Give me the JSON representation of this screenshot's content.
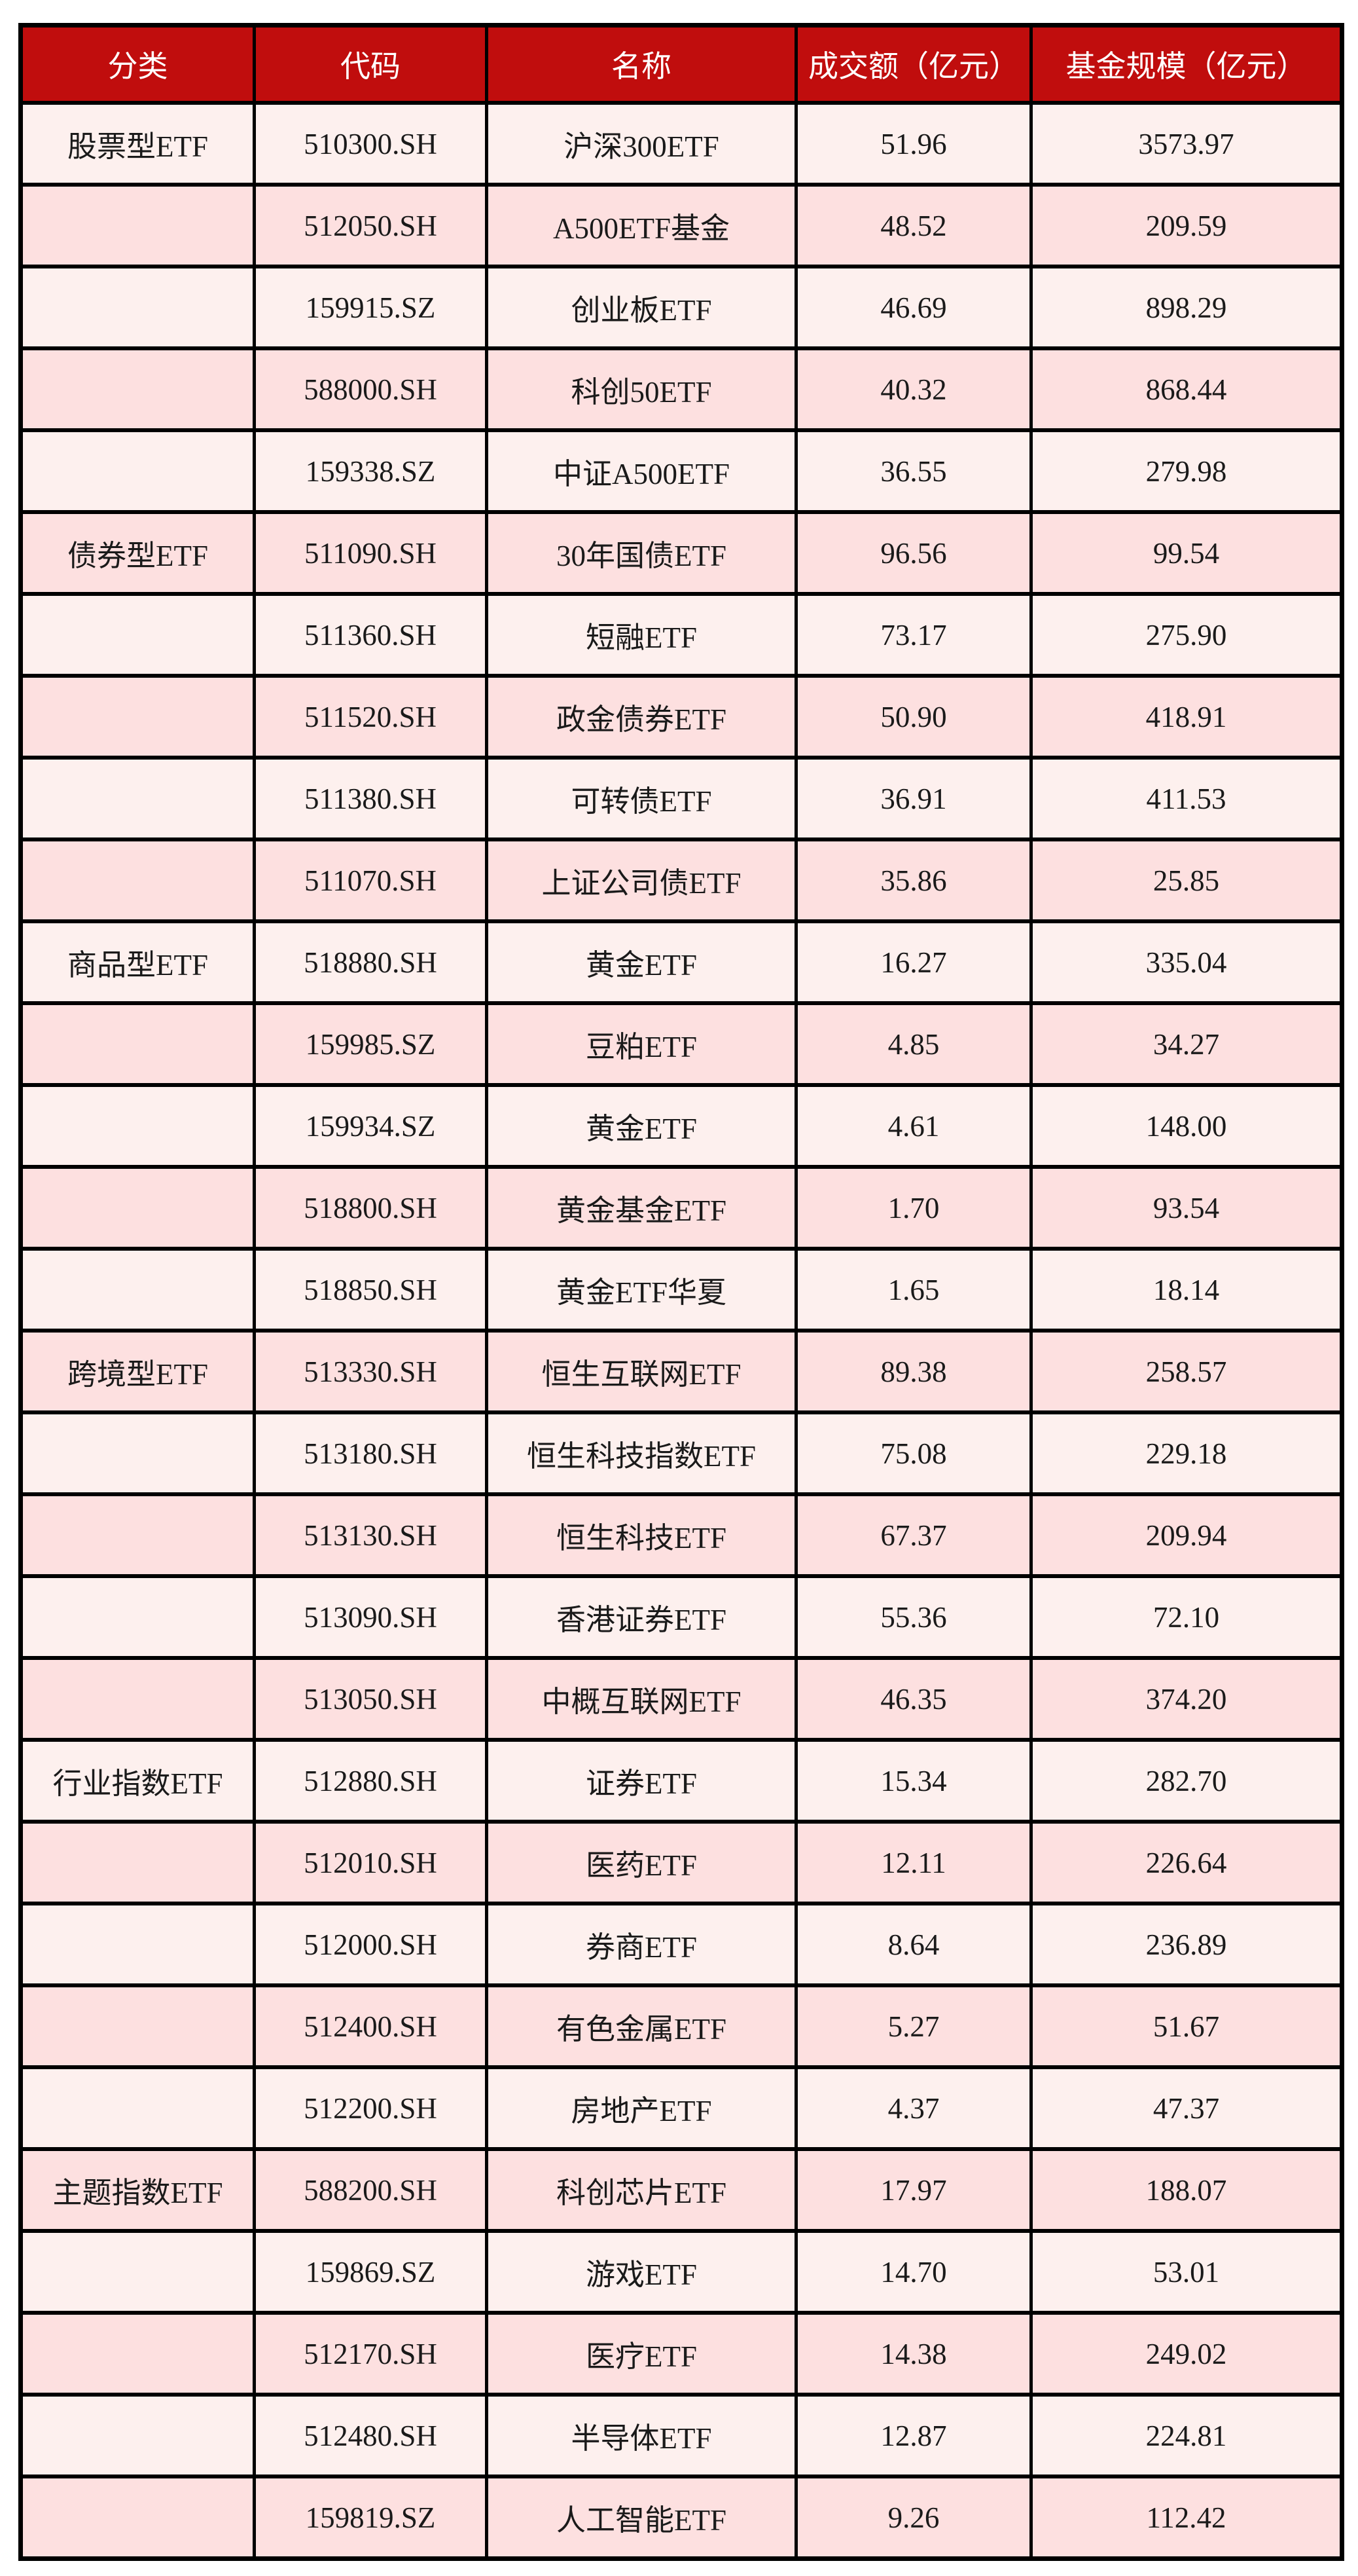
{
  "colors": {
    "header_bg": "#C00D0D",
    "header_fg": "#FFFFFF",
    "body_fg": "#1A1A1A",
    "row_light": "#FDF0EE",
    "row_dark": "#FDE0E0",
    "border": "#000000",
    "page_bg": "#FFFFFF"
  },
  "table": {
    "columns": [
      "分类",
      "代码",
      "名称",
      "成交额（亿元）",
      "基金规模（亿元）"
    ],
    "rows": [
      {
        "category": "股票型ETF",
        "code": "510300.SH",
        "name": "沪深300ETF",
        "turnover": "51.96",
        "fund_size": "3573.97"
      },
      {
        "category": "",
        "code": "512050.SH",
        "name": "A500ETF基金",
        "turnover": "48.52",
        "fund_size": "209.59"
      },
      {
        "category": "",
        "code": "159915.SZ",
        "name": "创业板ETF",
        "turnover": "46.69",
        "fund_size": "898.29"
      },
      {
        "category": "",
        "code": "588000.SH",
        "name": "科创50ETF",
        "turnover": "40.32",
        "fund_size": "868.44"
      },
      {
        "category": "",
        "code": "159338.SZ",
        "name": "中证A500ETF",
        "turnover": "36.55",
        "fund_size": "279.98"
      },
      {
        "category": "债券型ETF",
        "code": "511090.SH",
        "name": "30年国债ETF",
        "turnover": "96.56",
        "fund_size": "99.54"
      },
      {
        "category": "",
        "code": "511360.SH",
        "name": "短融ETF",
        "turnover": "73.17",
        "fund_size": "275.90"
      },
      {
        "category": "",
        "code": "511520.SH",
        "name": "政金债券ETF",
        "turnover": "50.90",
        "fund_size": "418.91"
      },
      {
        "category": "",
        "code": "511380.SH",
        "name": "可转债ETF",
        "turnover": "36.91",
        "fund_size": "411.53"
      },
      {
        "category": "",
        "code": "511070.SH",
        "name": "上证公司债ETF",
        "turnover": "35.86",
        "fund_size": "25.85"
      },
      {
        "category": "商品型ETF",
        "code": "518880.SH",
        "name": "黄金ETF",
        "turnover": "16.27",
        "fund_size": "335.04"
      },
      {
        "category": "",
        "code": "159985.SZ",
        "name": "豆粕ETF",
        "turnover": "4.85",
        "fund_size": "34.27"
      },
      {
        "category": "",
        "code": "159934.SZ",
        "name": "黄金ETF",
        "turnover": "4.61",
        "fund_size": "148.00"
      },
      {
        "category": "",
        "code": "518800.SH",
        "name": "黄金基金ETF",
        "turnover": "1.70",
        "fund_size": "93.54"
      },
      {
        "category": "",
        "code": "518850.SH",
        "name": "黄金ETF华夏",
        "turnover": "1.65",
        "fund_size": "18.14"
      },
      {
        "category": "跨境型ETF",
        "code": "513330.SH",
        "name": "恒生互联网ETF",
        "turnover": "89.38",
        "fund_size": "258.57"
      },
      {
        "category": "",
        "code": "513180.SH",
        "name": "恒生科技指数ETF",
        "turnover": "75.08",
        "fund_size": "229.18"
      },
      {
        "category": "",
        "code": "513130.SH",
        "name": "恒生科技ETF",
        "turnover": "67.37",
        "fund_size": "209.94"
      },
      {
        "category": "",
        "code": "513090.SH",
        "name": "香港证券ETF",
        "turnover": "55.36",
        "fund_size": "72.10"
      },
      {
        "category": "",
        "code": "513050.SH",
        "name": "中概互联网ETF",
        "turnover": "46.35",
        "fund_size": "374.20"
      },
      {
        "category": "行业指数ETF",
        "code": "512880.SH",
        "name": "证券ETF",
        "turnover": "15.34",
        "fund_size": "282.70"
      },
      {
        "category": "",
        "code": "512010.SH",
        "name": "医药ETF",
        "turnover": "12.11",
        "fund_size": "226.64"
      },
      {
        "category": "",
        "code": "512000.SH",
        "name": "券商ETF",
        "turnover": "8.64",
        "fund_size": "236.89"
      },
      {
        "category": "",
        "code": "512400.SH",
        "name": "有色金属ETF",
        "turnover": "5.27",
        "fund_size": "51.67"
      },
      {
        "category": "",
        "code": "512200.SH",
        "name": "房地产ETF",
        "turnover": "4.37",
        "fund_size": "47.37"
      },
      {
        "category": "主题指数ETF",
        "code": "588200.SH",
        "name": "科创芯片ETF",
        "turnover": "17.97",
        "fund_size": "188.07"
      },
      {
        "category": "",
        "code": "159869.SZ",
        "name": "游戏ETF",
        "turnover": "14.70",
        "fund_size": "53.01"
      },
      {
        "category": "",
        "code": "512170.SH",
        "name": "医疗ETF",
        "turnover": "14.38",
        "fund_size": "249.02"
      },
      {
        "category": "",
        "code": "512480.SH",
        "name": "半导体ETF",
        "turnover": "12.87",
        "fund_size": "224.81"
      },
      {
        "category": "",
        "code": "159819.SZ",
        "name": "人工智能ETF",
        "turnover": "9.26",
        "fund_size": "112.42"
      }
    ]
  }
}
